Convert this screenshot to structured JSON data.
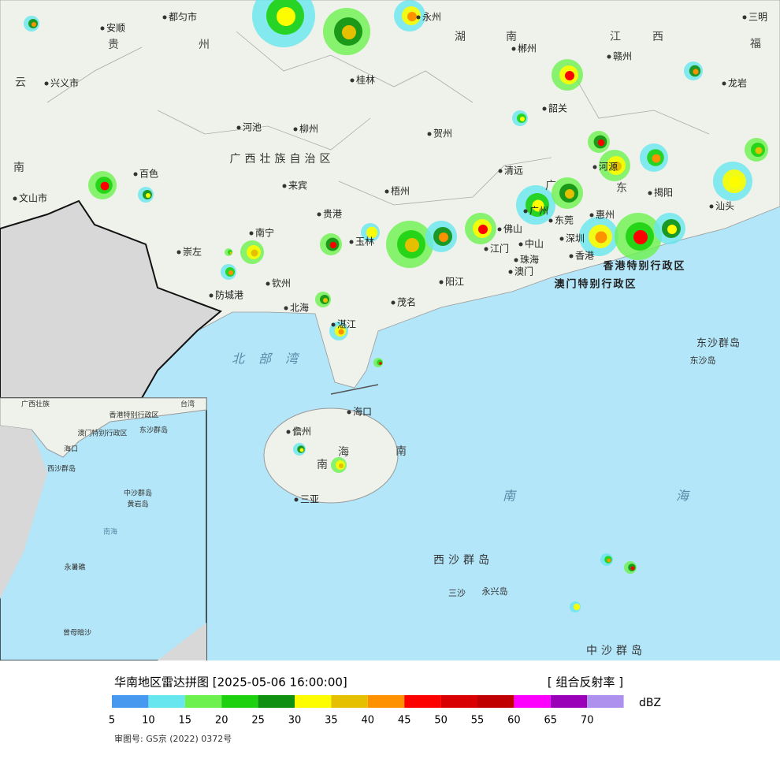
{
  "map": {
    "labels": [
      "都匀市",
      "安顺",
      "贵",
      "州",
      "云",
      "兴义市",
      "南",
      "文山市",
      "百色",
      "河池",
      "柳州",
      "桂林",
      "贺州",
      "郴州",
      "湖",
      "南",
      "江",
      "西",
      "赣州",
      "三明",
      "福",
      "永州",
      "龙岩",
      "韶关",
      "广西壮族自治区",
      "来宾",
      "梧州",
      "清远",
      "河源",
      "广",
      "东",
      "惠州",
      "揭阳",
      "汕头",
      "贵港",
      "南宁",
      "玉林",
      "崇左",
      "钦州",
      "防城港",
      "北海",
      "茂名",
      "阳江",
      "佛山",
      "江门",
      "中山",
      "珠海",
      "澳门",
      "香港",
      "东莞",
      "深圳",
      "广州",
      "香港特别行政区",
      "澳门特别行政区",
      "东沙群岛",
      "东沙岛",
      "北部湾",
      "湛江",
      "海口",
      "儋州",
      "海",
      "南",
      "南",
      "三亚",
      "南",
      "海",
      "西沙群岛",
      "三沙",
      "永兴岛",
      "中沙群岛"
    ],
    "inset_labels": [
      "广西壮族",
      "台湾",
      "香港特别行政区",
      "澳门特别行政区",
      "东沙群岛",
      "海口",
      "西沙群岛",
      "中沙群岛",
      "黄岩岛",
      "南海",
      "永暑礁",
      "曾母暗沙"
    ]
  },
  "legend": {
    "title": "华南地区雷达拼图 [2025-05-06 16:00:00]",
    "product": "[ 组合反射率 ]",
    "unit": "dBZ",
    "ticks": [
      5,
      10,
      15,
      20,
      25,
      30,
      35,
      40,
      45,
      50,
      55,
      60,
      65,
      70
    ],
    "colors": [
      "#4699ef",
      "#67e6ef",
      "#6cf14e",
      "#1dd10e",
      "#109010",
      "#fdfd00",
      "#e5c000",
      "#fd9100",
      "#fd0000",
      "#d80000",
      "#c00000",
      "#fd00fd",
      "#9a00b8",
      "#ae90ef"
    ]
  },
  "approval": "审图号: GS京 (2022) 0372号"
}
